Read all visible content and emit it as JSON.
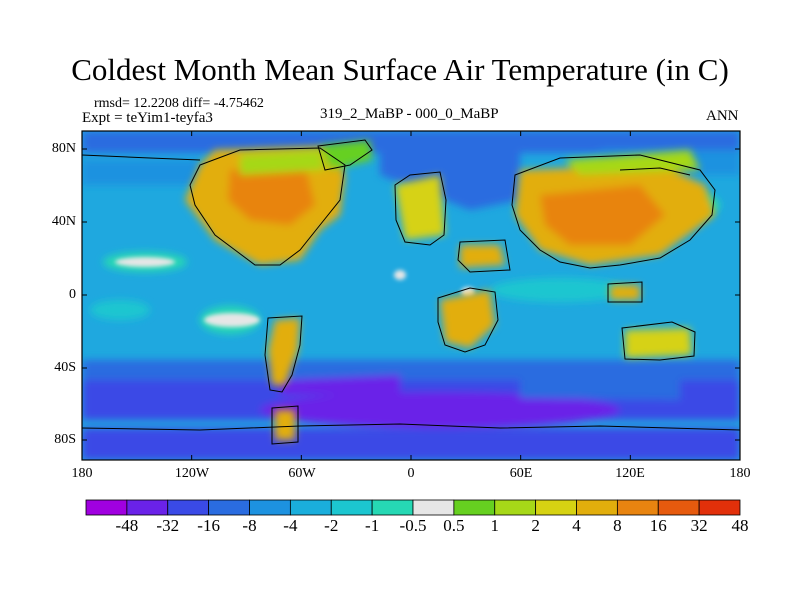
{
  "title": "Coldest Month Mean Surface Air Temperature (in C)",
  "stats_text": "rmsd= 12.2208 diff= -4.75462",
  "experiment_text": "Expt = teYim1-teyfa3",
  "period_text": "319_2_MaBP - 000_0_MaBP",
  "season_text": "ANN",
  "map": {
    "projection": "cylindrical equidistant",
    "lon_range": [
      -180,
      180
    ],
    "lat_range": [
      -90,
      90
    ],
    "x_ticks": [
      "180",
      "120W",
      "60W",
      "0",
      "60E",
      "120E",
      "180"
    ],
    "y_ticks": [
      "80N",
      "40N",
      "0",
      "40S",
      "80S"
    ],
    "ocean_background_color": "#1fa8df",
    "coastline_color": "#000000"
  },
  "colorbar": {
    "labels": [
      "-48",
      "-32",
      "-16",
      "-8",
      "-4",
      "-2",
      "-1",
      "-0.5",
      "0.5",
      "1",
      "2",
      "4",
      "8",
      "16",
      "32",
      "48"
    ],
    "colors": [
      "#a000e0",
      "#6a22e8",
      "#3a4ae6",
      "#2a6ce0",
      "#1d92e0",
      "#1aaedc",
      "#1cc6d0",
      "#26d8b4",
      "#e6e6e6",
      "#66d020",
      "#a6d818",
      "#d6d212",
      "#e2ae0c",
      "#e88410",
      "#e65a0e",
      "#e2300a"
    ]
  }
}
